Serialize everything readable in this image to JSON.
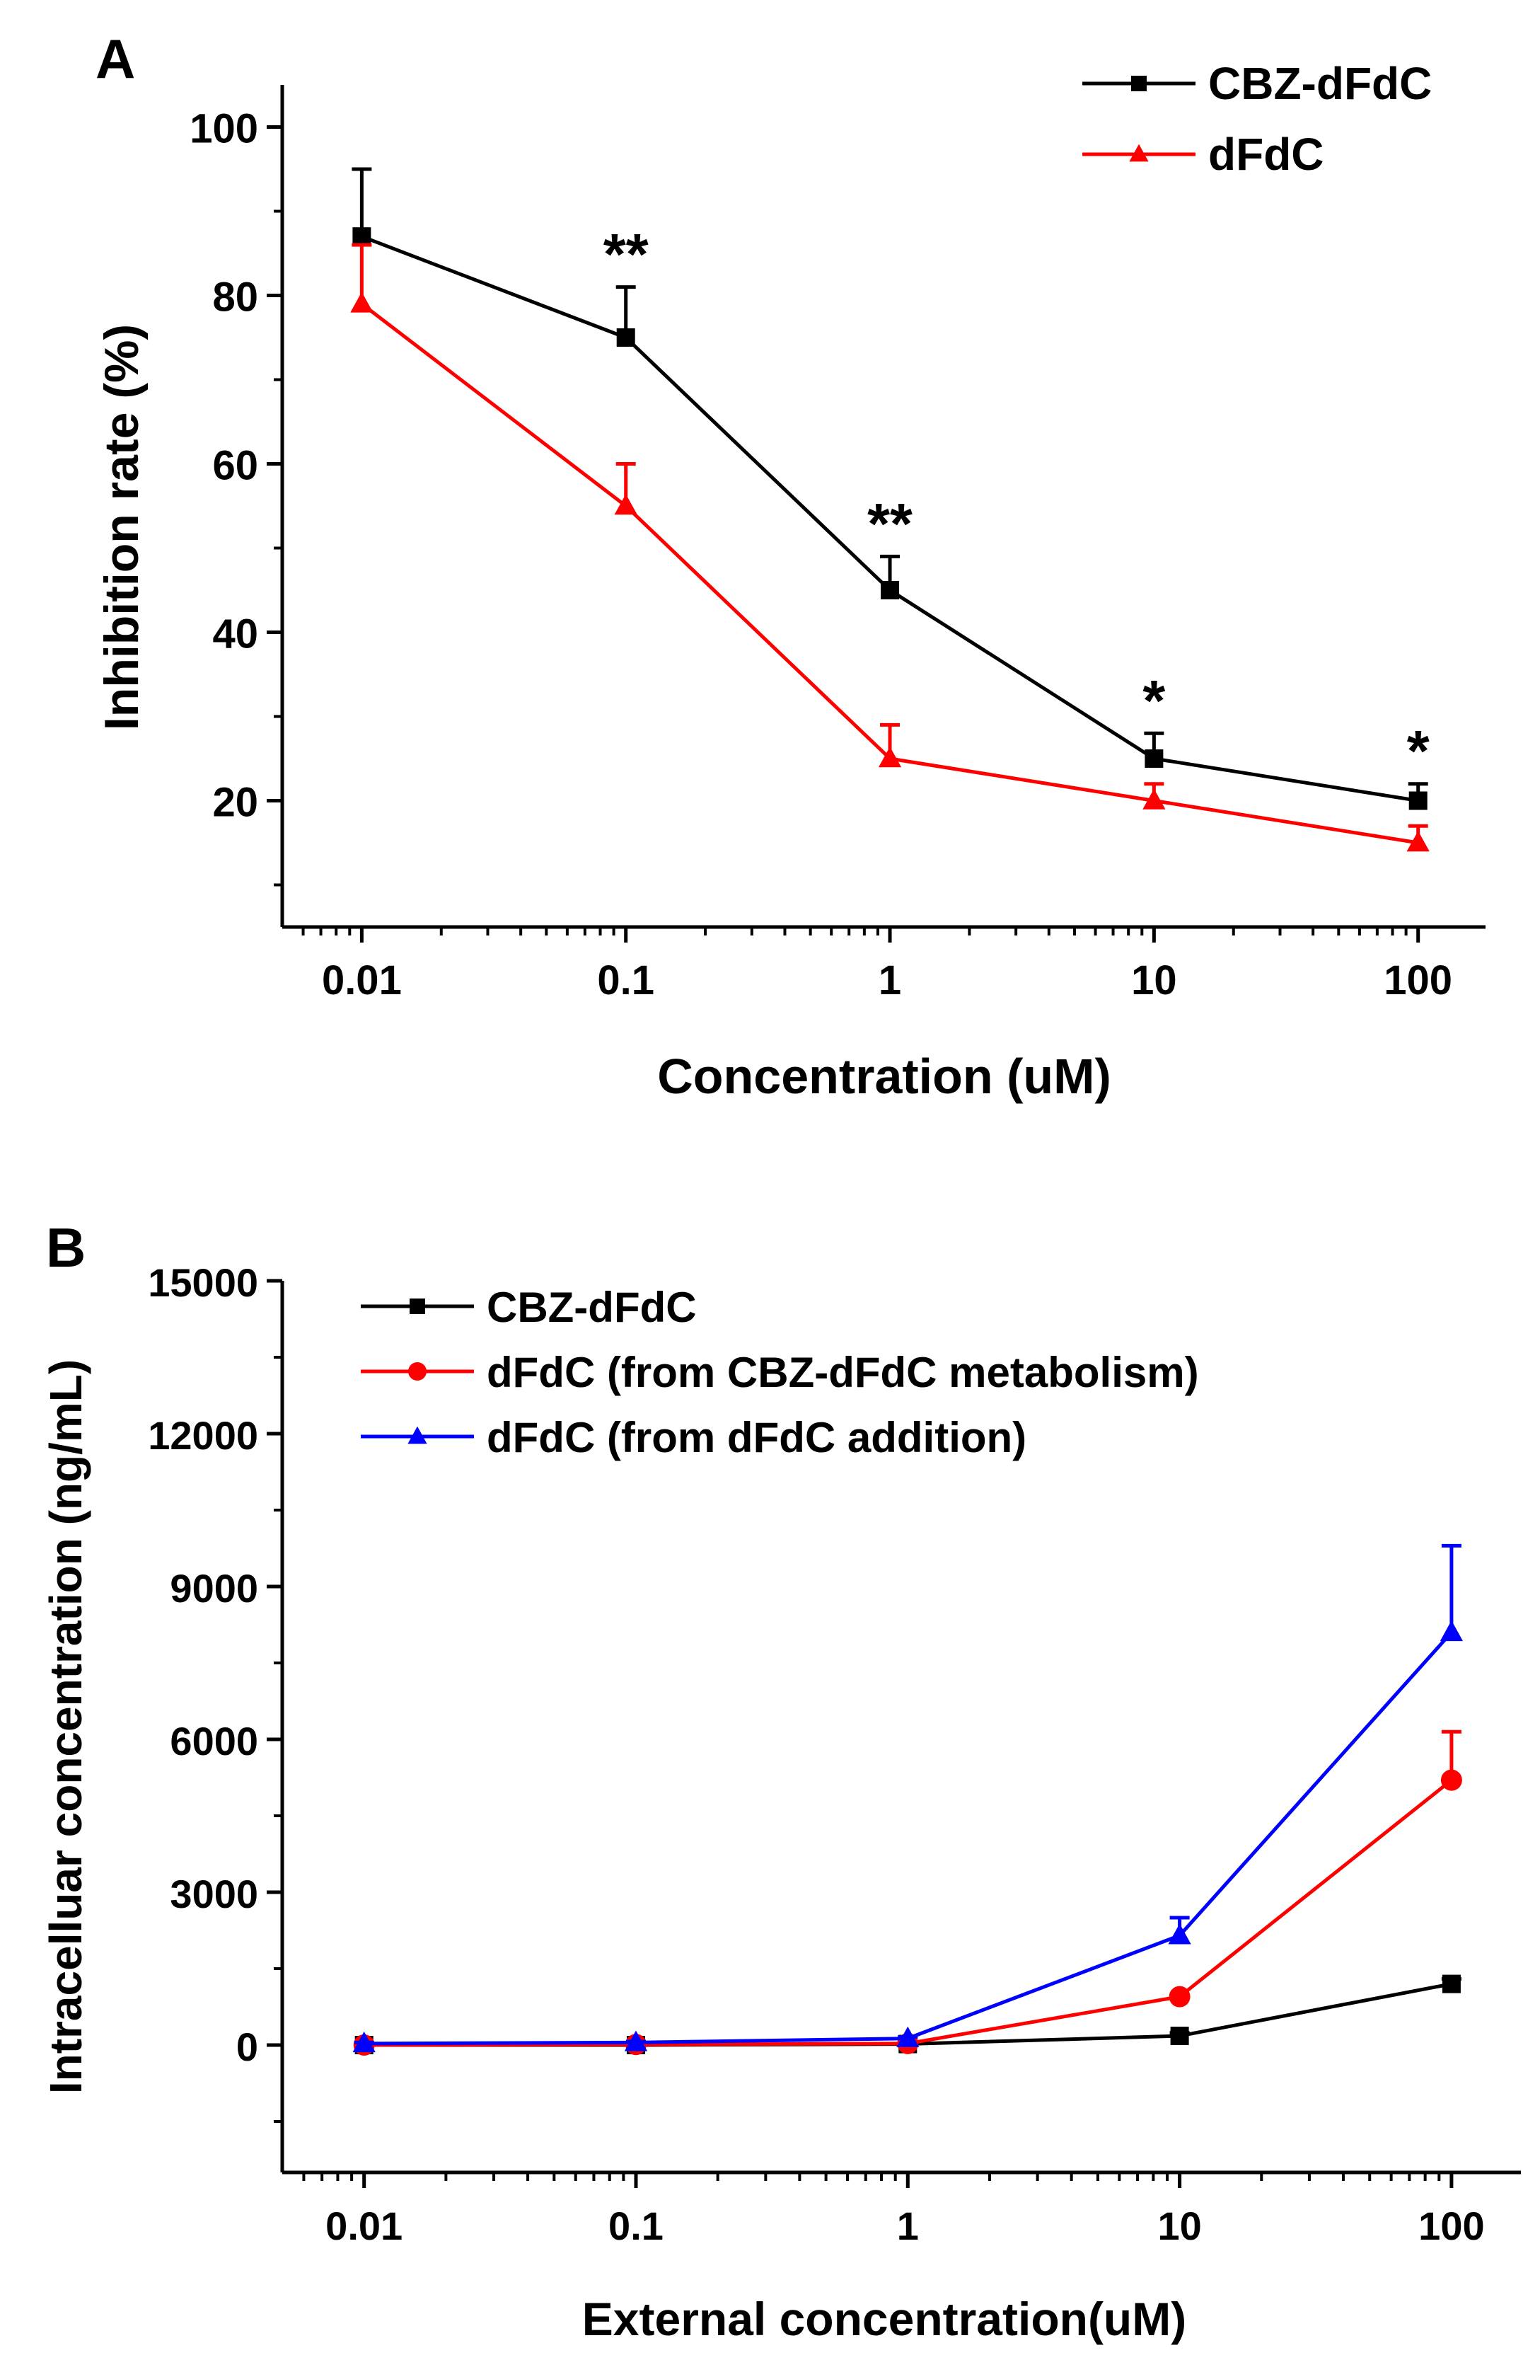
{
  "chart_data": [
    {
      "type": "line",
      "panel_label": "A",
      "title": "",
      "xlabel": "Concentration (uM)",
      "ylabel": "Inhibition rate (%)",
      "xscale": "log",
      "x": [
        0.01,
        0.1,
        1,
        10,
        100
      ],
      "xtick_labels": [
        "0.01",
        "0.1",
        "1",
        "10",
        "100"
      ],
      "xlim": [
        0.005,
        180
      ],
      "ylim": [
        5,
        105
      ],
      "yticks": [
        20,
        40,
        60,
        80,
        100
      ],
      "ytick_labels": [
        "20",
        "40",
        "60",
        "80",
        "100"
      ],
      "legend_position": "top-right",
      "series": [
        {
          "name": "CBZ-dFdC",
          "color": "#000000",
          "marker": "square",
          "values": [
            87,
            75,
            45,
            25,
            20
          ],
          "errors": [
            8,
            6,
            4,
            3,
            2
          ]
        },
        {
          "name": "dFdC",
          "color": "#ff0000",
          "marker": "triangle",
          "values": [
            79,
            55,
            25,
            20,
            15
          ],
          "errors": [
            7,
            5,
            4,
            2,
            2
          ]
        }
      ],
      "annotations": [
        {
          "x": 0.1,
          "y": 81,
          "text": "**"
        },
        {
          "x": 1,
          "y": 49,
          "text": "**"
        },
        {
          "x": 10,
          "y": 28,
          "text": "*"
        },
        {
          "x": 100,
          "y": 22,
          "text": "*"
        }
      ]
    },
    {
      "type": "line",
      "panel_label": "B",
      "title": "",
      "xlabel": "External concentration(uM)",
      "ylabel": "Intracelluar concentration (ng/mL)",
      "xscale": "log",
      "x": [
        0.01,
        0.1,
        1,
        10,
        100
      ],
      "xtick_labels": [
        "0.01",
        "0.1",
        "1",
        "10",
        "100"
      ],
      "xlim": [
        0.005,
        180
      ],
      "ylim": [
        -2500,
        15000
      ],
      "yticks": [
        0,
        3000,
        6000,
        9000,
        12000,
        15000
      ],
      "ytick_labels": [
        "0",
        "3000",
        "6000",
        "9000",
        "12000",
        "15000"
      ],
      "legend_position": "top-left",
      "series": [
        {
          "name": "CBZ-dFdC",
          "color": "#000000",
          "marker": "square",
          "values": [
            0,
            0,
            20,
            180,
            1200
          ],
          "errors": [
            20,
            20,
            20,
            60,
            100
          ]
        },
        {
          "name": "dFdC (from CBZ-dFdC metabolism)",
          "color": "#ff0000",
          "marker": "circle",
          "values": [
            0,
            10,
            30,
            950,
            5200
          ],
          "errors": [
            0,
            0,
            0,
            0,
            950
          ]
        },
        {
          "name": "dFdC (from dFdC addition)",
          "color": "#0000ff",
          "marker": "triangle",
          "values": [
            30,
            50,
            130,
            2150,
            8100
          ],
          "errors": [
            20,
            20,
            30,
            350,
            1700
          ]
        }
      ]
    }
  ]
}
